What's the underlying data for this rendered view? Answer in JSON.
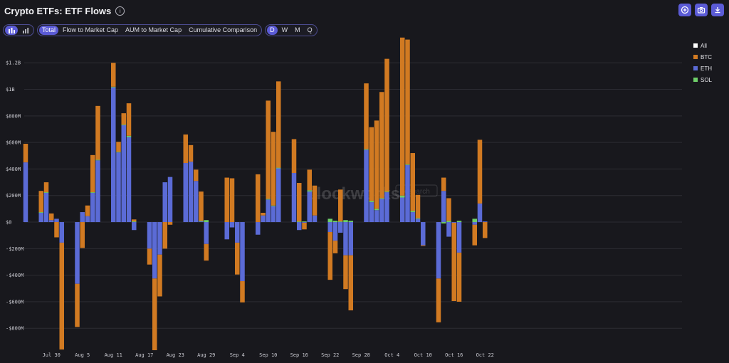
{
  "header": {
    "title": "Crypto ETFs: ETF Flows",
    "info_icon": "info-icon"
  },
  "toolbar": {
    "chart_types": [
      {
        "icon": "bar-chart-icon",
        "active": true
      },
      {
        "icon": "stacked-bar-icon",
        "active": false
      }
    ],
    "views": [
      {
        "label": "Total",
        "active": true
      },
      {
        "label": "Flow to Market Cap",
        "active": false
      },
      {
        "label": "AUM to Market Cap",
        "active": false
      },
      {
        "label": "Cumulative Comparison",
        "active": false
      }
    ],
    "periods": [
      {
        "label": "D",
        "active": true
      },
      {
        "label": "W",
        "active": false
      },
      {
        "label": "M",
        "active": false
      },
      {
        "label": "Q",
        "active": false
      }
    ],
    "actions": [
      {
        "icon": "add-circle-icon"
      },
      {
        "icon": "camera-icon"
      },
      {
        "icon": "download-icon"
      }
    ]
  },
  "legend": {
    "items": [
      {
        "label": "All",
        "color": "#ffffff"
      },
      {
        "label": "BTC",
        "color": "#d17a22"
      },
      {
        "label": "ETH",
        "color": "#5b6bd6"
      },
      {
        "label": "SOL",
        "color": "#6fcf6a"
      }
    ]
  },
  "chart_data": {
    "type": "bar",
    "stacked": true,
    "yticks": [
      {
        "value": -800,
        "label": "-$800M"
      },
      {
        "value": -600,
        "label": "-$600M"
      },
      {
        "value": -400,
        "label": "-$400M"
      },
      {
        "value": -200,
        "label": "-$200M"
      },
      {
        "value": 0,
        "label": "$0"
      },
      {
        "value": 200,
        "label": "$200M"
      },
      {
        "value": 400,
        "label": "$400M"
      },
      {
        "value": 600,
        "label": "$600M"
      },
      {
        "value": 800,
        "label": "$800M"
      },
      {
        "value": 1000,
        "label": "$1B"
      },
      {
        "value": 1200,
        "label": "$1.2B"
      }
    ],
    "ylim": [
      -965,
      1405
    ],
    "xticks": [
      {
        "day": "Jul 30",
        "label": "Jul 30"
      },
      {
        "day": "Aug 5",
        "label": "Aug 5"
      },
      {
        "day": "Aug 11",
        "label": "Aug 11"
      },
      {
        "day": "Aug 17",
        "label": "Aug 17"
      },
      {
        "day": "Aug 23",
        "label": "Aug 23"
      },
      {
        "day": "Aug 29",
        "label": "Aug 29"
      },
      {
        "day": "Sep 4",
        "label": "Sep 4"
      },
      {
        "day": "Sep 10",
        "label": "Sep 10"
      },
      {
        "day": "Sep 16",
        "label": "Sep 16"
      },
      {
        "day": "Sep 22",
        "label": "Sep 22"
      },
      {
        "day": "Sep 28",
        "label": "Sep 28"
      },
      {
        "day": "Oct 4",
        "label": "Oct 4"
      },
      {
        "day": "Oct 10",
        "label": "Oct 10"
      },
      {
        "day": "Oct 16",
        "label": "Oct 16"
      },
      {
        "day": "Oct 22",
        "label": "Oct 22"
      }
    ],
    "bars": [
      {
        "day": "Jul 25",
        "eth": 450,
        "btc": 140,
        "sol": 0
      },
      {
        "day": "Jul 28",
        "eth": 70,
        "btc": 160,
        "sol": 5
      },
      {
        "day": "Jul 29",
        "eth": 220,
        "btc": 75,
        "sol": 5
      },
      {
        "day": "Jul 30",
        "eth": 15,
        "btc": 50,
        "sol": 0
      },
      {
        "day": "Jul 31",
        "eth": 25,
        "btc": -115,
        "sol": 0
      },
      {
        "day": "Aug 1",
        "eth": -155,
        "btc": -805,
        "sol": 0
      },
      {
        "day": "Aug 4",
        "eth": -465,
        "btc": -325,
        "sol": 0
      },
      {
        "day": "Aug 5",
        "eth": 75,
        "btc": -195,
        "sol": 0
      },
      {
        "day": "Aug 6",
        "eth": 45,
        "btc": 80,
        "sol": 0
      },
      {
        "day": "Aug 7",
        "eth": 220,
        "btc": 280,
        "sol": 5
      },
      {
        "day": "Aug 8",
        "eth": 465,
        "btc": 405,
        "sol": 5
      },
      {
        "day": "Aug 11",
        "eth": 1015,
        "btc": 180,
        "sol": 5
      },
      {
        "day": "Aug 12",
        "eth": 525,
        "btc": 75,
        "sol": 5
      },
      {
        "day": "Aug 13",
        "eth": 730,
        "btc": 85,
        "sol": 5
      },
      {
        "day": "Aug 14",
        "eth": 640,
        "btc": 245,
        "sol": 10
      },
      {
        "day": "Aug 15",
        "eth": -60,
        "btc": 15,
        "sol": 5
      },
      {
        "day": "Aug 18",
        "eth": -200,
        "btc": -120,
        "sol": 0
      },
      {
        "day": "Aug 19",
        "eth": -425,
        "btc": -540,
        "sol": 0
      },
      {
        "day": "Aug 20",
        "eth": -245,
        "btc": -315,
        "sol": 0
      },
      {
        "day": "Aug 21",
        "eth": 300,
        "btc": -200,
        "sol": 0
      },
      {
        "day": "Aug 22",
        "eth": 340,
        "btc": -20,
        "sol": 0
      },
      {
        "day": "Aug 25",
        "eth": 445,
        "btc": 215,
        "sol": 0
      },
      {
        "day": "Aug 26",
        "eth": 455,
        "btc": 125,
        "sol": 0
      },
      {
        "day": "Aug 27",
        "eth": 310,
        "btc": 85,
        "sol": 0
      },
      {
        "day": "Aug 28",
        "eth": 5,
        "btc": 220,
        "sol": 5
      },
      {
        "day": "Aug 29",
        "eth": -165,
        "btc": -125,
        "sol": 15
      },
      {
        "day": "Sep 2",
        "eth": -130,
        "btc": 335,
        "sol": 0
      },
      {
        "day": "Sep 3",
        "eth": -40,
        "btc": 330,
        "sol": 0
      },
      {
        "day": "Sep 4",
        "eth": -155,
        "btc": -240,
        "sol": 0
      },
      {
        "day": "Sep 5",
        "eth": -445,
        "btc": -160,
        "sol": 0
      },
      {
        "day": "Sep 8",
        "eth": -95,
        "btc": 360,
        "sol": 0
      },
      {
        "day": "Sep 9",
        "eth": 50,
        "btc": 20,
        "sol": 0
      },
      {
        "day": "Sep 10",
        "eth": 170,
        "btc": 740,
        "sol": 5
      },
      {
        "day": "Sep 11",
        "eth": 120,
        "btc": 555,
        "sol": 5
      },
      {
        "day": "Sep 12",
        "eth": 405,
        "btc": 650,
        "sol": 5
      },
      {
        "day": "Sep 15",
        "eth": 370,
        "btc": 255,
        "sol": 0
      },
      {
        "day": "Sep 16",
        "eth": -60,
        "btc": 290,
        "sol": 5
      },
      {
        "day": "Sep 17",
        "eth": -5,
        "btc": -50,
        "sol": 5
      },
      {
        "day": "Sep 18",
        "eth": 230,
        "btc": 155,
        "sol": 10
      },
      {
        "day": "Sep 19",
        "eth": 50,
        "btc": 225,
        "sol": 0
      },
      {
        "day": "Sep 22",
        "eth": -75,
        "btc": -360,
        "sol": 25
      },
      {
        "day": "Sep 23",
        "eth": -140,
        "btc": -95,
        "sol": 10
      },
      {
        "day": "Sep 24",
        "eth": -80,
        "btc": 240,
        "sol": 5
      },
      {
        "day": "Sep 25",
        "eth": -250,
        "btc": -255,
        "sol": 15
      },
      {
        "day": "Sep 26",
        "eth": -250,
        "btc": -415,
        "sol": 10
      },
      {
        "day": "Sep 29",
        "eth": 545,
        "btc": 495,
        "sol": 5
      },
      {
        "day": "Sep 30",
        "eth": 150,
        "btc": 555,
        "sol": 10
      },
      {
        "day": "Oct 1",
        "eth": 90,
        "btc": 665,
        "sol": 10
      },
      {
        "day": "Oct 2",
        "eth": 175,
        "btc": 800,
        "sol": 5
      },
      {
        "day": "Oct 3",
        "eth": 225,
        "btc": 1000,
        "sol": 5
      },
      {
        "day": "Oct 6",
        "eth": 185,
        "btc": 1190,
        "sol": 15
      },
      {
        "day": "Oct 7",
        "eth": 430,
        "btc": 940,
        "sol": 5
      },
      {
        "day": "Oct 8",
        "eth": 75,
        "btc": 435,
        "sol": 10
      },
      {
        "day": "Oct 9",
        "eth": 25,
        "btc": 175,
        "sol": 5
      },
      {
        "day": "Oct 10",
        "eth": -175,
        "btc": -5,
        "sol": 0
      },
      {
        "day": "Oct 13",
        "eth": -425,
        "btc": -330,
        "sol": 0
      },
      {
        "day": "Oct 14",
        "eth": 235,
        "btc": 100,
        "sol": -10
      },
      {
        "day": "Oct 15",
        "eth": -110,
        "btc": 170,
        "sol": 10
      },
      {
        "day": "Oct 16",
        "eth": -5,
        "btc": -590,
        "sol": 0
      },
      {
        "day": "Oct 17",
        "eth": -230,
        "btc": -370,
        "sol": 10
      },
      {
        "day": "Oct 20",
        "eth": -20,
        "btc": -155,
        "sol": 25
      },
      {
        "day": "Oct 21",
        "eth": 140,
        "btc": 480,
        "sol": 0
      },
      {
        "day": "Oct 22",
        "eth": 5,
        "btc": -120,
        "sol": 0
      }
    ]
  },
  "watermark": {
    "text": "blockworks",
    "badge": "Research"
  }
}
